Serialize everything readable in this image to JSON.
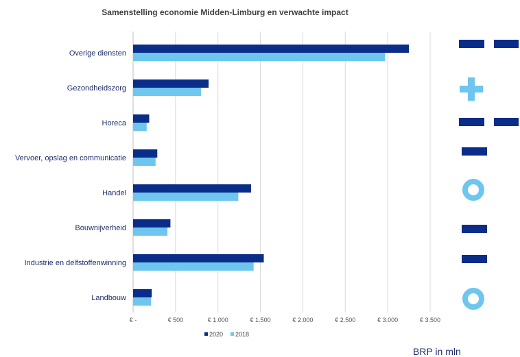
{
  "chart_data": {
    "type": "bar",
    "orientation": "horizontal",
    "title": "Samenstelling economie Midden-Limburg en verwachte impact",
    "categories": [
      "Overige diensten",
      "Gezondheidszorg",
      "Horeca",
      "Vervoer, opslag en communicatie",
      "Handel",
      "Bouwnijverheid",
      "Industrie en delfstoffenwinning",
      "Landbouw"
    ],
    "series": [
      {
        "name": "2020",
        "color": "#0a2d8a",
        "values": [
          3250,
          890,
          190,
          285,
          1390,
          440,
          1540,
          220
        ]
      },
      {
        "name": "2018",
        "color": "#6ec6ee",
        "values": [
          2970,
          800,
          160,
          265,
          1240,
          405,
          1420,
          210
        ]
      }
    ],
    "xlim": [
      0,
      3500
    ],
    "tick_values": [
      0,
      500,
      1000,
      1500,
      2000,
      2500,
      3000,
      3500
    ],
    "tick_labels": [
      "€ -",
      "€ 500",
      "€ 1.000",
      "€ 1.500",
      "€ 2.000",
      "€ 2.500",
      "€ 3.000",
      "€ 3.500"
    ],
    "grid": true,
    "legend_position": "bottom",
    "impact_markers": [
      "double-minus",
      "plus",
      "double-minus",
      "minus",
      "circle",
      "minus",
      "minus",
      "circle"
    ],
    "impact_color_dark": "#0a2d8a",
    "impact_color_light": "#6ec6ee",
    "note": "BRP in mln"
  }
}
